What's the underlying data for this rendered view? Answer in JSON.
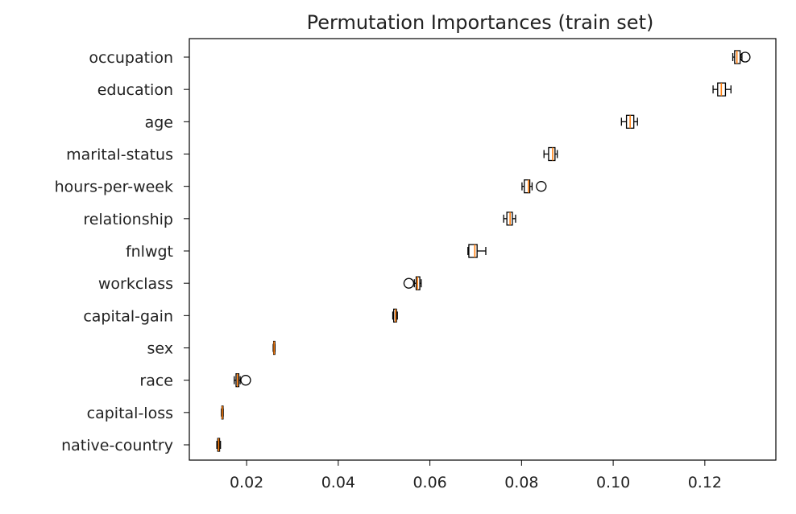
{
  "chart_data": {
    "type": "boxplot",
    "orientation": "horizontal",
    "title": "Permutation Importances (train set)",
    "xlabel": "",
    "ylabel": "",
    "xlim": [
      0.0075,
      0.1355
    ],
    "xticks": [
      0.02,
      0.04,
      0.06,
      0.08,
      0.1,
      0.12
    ],
    "xtick_labels": [
      "0.02",
      "0.04",
      "0.06",
      "0.08",
      "0.10",
      "0.12"
    ],
    "grid": false,
    "legend": "none",
    "categories": [
      "occupation",
      "education",
      "age",
      "marital-status",
      "hours-per-week",
      "relationship",
      "fnlwgt",
      "workclass",
      "capital-gain",
      "sex",
      "race",
      "capital-loss",
      "native-country"
    ],
    "boxes": [
      {
        "whislo": 0.1261,
        "q1": 0.1265,
        "med": 0.127,
        "q3": 0.1277,
        "whishi": 0.1281,
        "fliers": [
          0.1288
        ]
      },
      {
        "whislo": 0.1218,
        "q1": 0.1228,
        "med": 0.1236,
        "q3": 0.1245,
        "whishi": 0.1257,
        "fliers": []
      },
      {
        "whislo": 0.1018,
        "q1": 0.1029,
        "med": 0.1037,
        "q3": 0.1045,
        "whishi": 0.1053,
        "fliers": []
      },
      {
        "whislo": 0.0849,
        "q1": 0.0859,
        "med": 0.0868,
        "q3": 0.0873,
        "whishi": 0.0878,
        "fliers": []
      },
      {
        "whislo": 0.0801,
        "q1": 0.0806,
        "med": 0.0815,
        "q3": 0.0818,
        "whishi": 0.0823,
        "fliers": [
          0.0843
        ]
      },
      {
        "whislo": 0.0761,
        "q1": 0.0768,
        "med": 0.0775,
        "q3": 0.078,
        "whishi": 0.0787,
        "fliers": []
      },
      {
        "whislo": 0.0683,
        "q1": 0.0685,
        "med": 0.0698,
        "q3": 0.0703,
        "whishi": 0.0722,
        "fliers": []
      },
      {
        "whislo": 0.0566,
        "q1": 0.057,
        "med": 0.0573,
        "q3": 0.0578,
        "whishi": 0.0581,
        "fliers": [
          0.0554
        ]
      },
      {
        "whislo": 0.0519,
        "q1": 0.0521,
        "med": 0.0525,
        "q3": 0.0527,
        "whishi": 0.0529,
        "fliers": []
      },
      {
        "whislo": 0.0258,
        "q1": 0.0259,
        "med": 0.026,
        "q3": 0.0261,
        "whishi": 0.0262,
        "fliers": []
      },
      {
        "whislo": 0.0173,
        "q1": 0.0177,
        "med": 0.018,
        "q3": 0.0183,
        "whishi": 0.0186,
        "fliers": [
          0.0198
        ]
      },
      {
        "whislo": 0.0145,
        "q1": 0.0146,
        "med": 0.0147,
        "q3": 0.0148,
        "whishi": 0.0149,
        "fliers": []
      },
      {
        "whislo": 0.0135,
        "q1": 0.0137,
        "med": 0.0139,
        "q3": 0.0141,
        "whishi": 0.0143,
        "fliers": []
      }
    ],
    "colors": {
      "box": "#000000",
      "median": "#ff7f0e",
      "axes": "#000000"
    }
  }
}
